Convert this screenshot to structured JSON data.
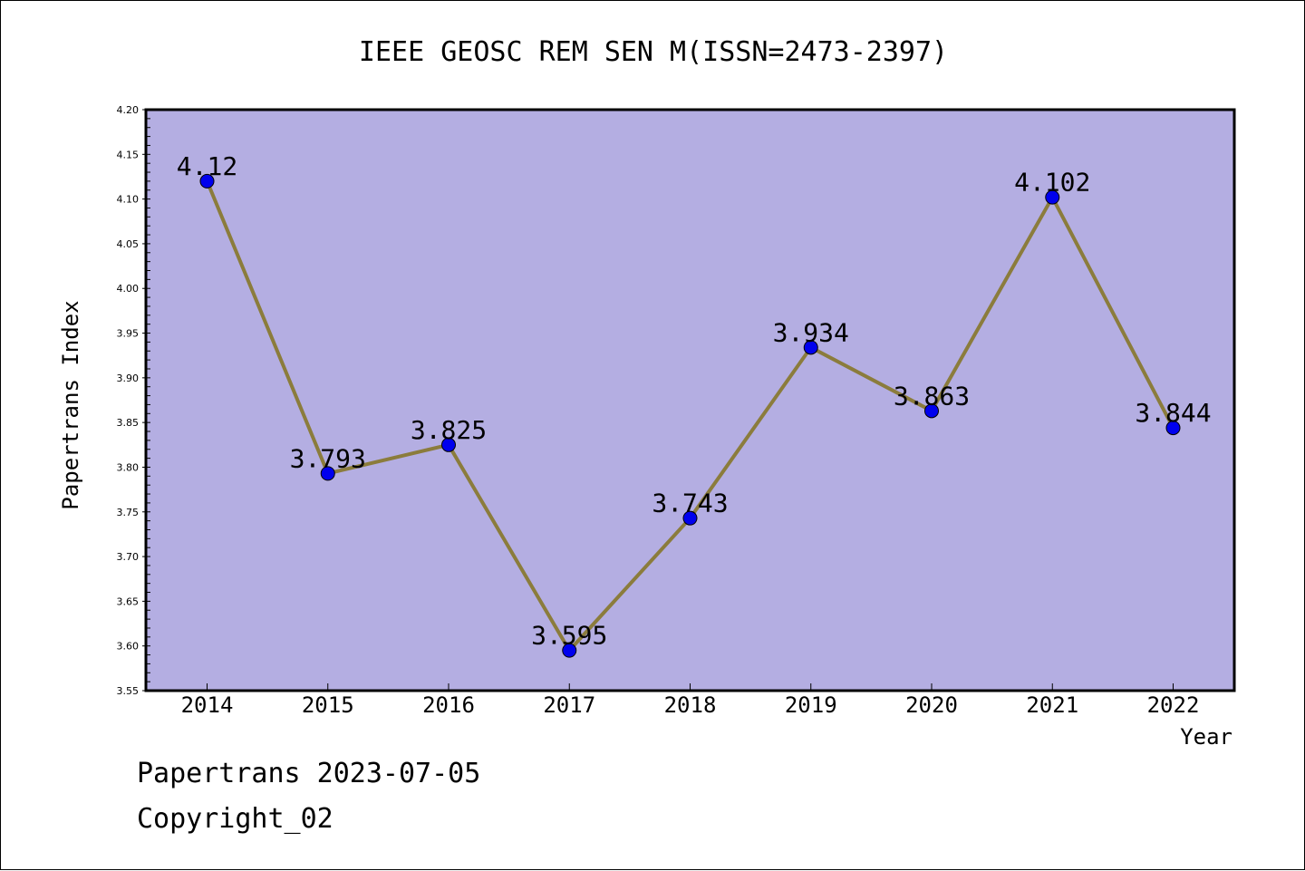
{
  "chart_data": {
    "type": "line",
    "title": "IEEE GEOSC REM SEN M(ISSN=2473-2397)",
    "xlabel": "Year",
    "ylabel": "Papertrans Index",
    "categories": [
      "2014",
      "2015",
      "2016",
      "2017",
      "2018",
      "2019",
      "2020",
      "2021",
      "2022"
    ],
    "values": [
      4.12,
      3.793,
      3.825,
      3.595,
      3.743,
      3.934,
      3.863,
      4.102,
      3.844
    ],
    "data_labels": [
      "4.12",
      "3.793",
      "3.825",
      "3.595",
      "3.743",
      "3.934",
      "3.863",
      "4.102",
      "3.844"
    ],
    "ylim": [
      3.55,
      4.2
    ],
    "yticks": [
      "3.55",
      "3.60",
      "3.65",
      "3.70",
      "3.75",
      "3.80",
      "3.85",
      "3.90",
      "3.95",
      "4.00",
      "4.05",
      "4.10",
      "4.15",
      "4.20"
    ],
    "grid": false,
    "colors": {
      "plot_background": "#b4aee2",
      "line": "#8b7c3c",
      "marker": "#0000ee"
    }
  },
  "footer": {
    "line1": "Papertrans 2023-07-05",
    "line2": "Copyright_02"
  }
}
